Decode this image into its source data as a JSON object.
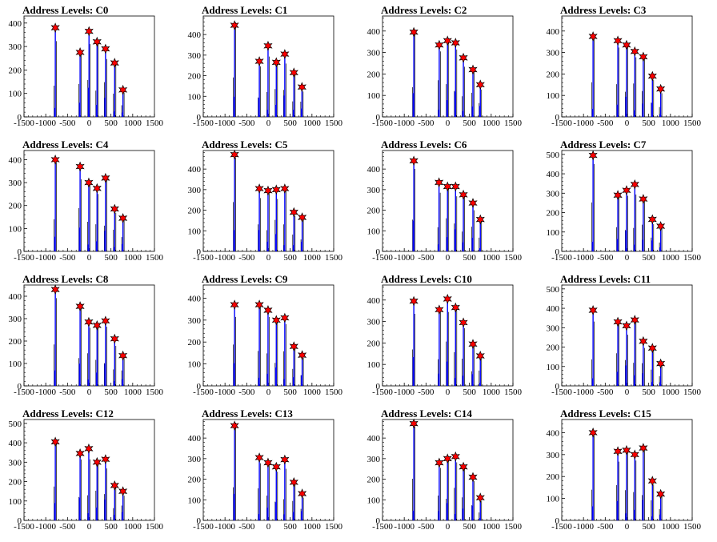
{
  "colors": {
    "hist_line": "#0000ff",
    "raw_line": "#000000",
    "marker_fill": "#ff0000",
    "marker_stroke": "#000000"
  },
  "chart_data": [
    {
      "type": "bar",
      "title": "Address Levels: C0",
      "xlim": [
        -1500,
        1500
      ],
      "ylim": [
        0,
        430
      ],
      "x_ticks": [
        -1500,
        -1000,
        -500,
        0,
        500,
        1000,
        1500
      ],
      "x_tick_labels": [
        "-1500",
        "-1000",
        "-500",
        "0",
        "500",
        "1000",
        "1500"
      ],
      "y_ticks": [
        0,
        100,
        200,
        300,
        400
      ],
      "peaks": [
        {
          "x": -780,
          "y": 380
        },
        {
          "x": -210,
          "y": 275
        },
        {
          "x": -5,
          "y": 365
        },
        {
          "x": 180,
          "y": 320
        },
        {
          "x": 375,
          "y": 290
        },
        {
          "x": 585,
          "y": 230
        },
        {
          "x": 775,
          "y": 115
        }
      ]
    },
    {
      "type": "bar",
      "title": "Address Levels: C1",
      "xlim": [
        -1500,
        1500
      ],
      "ylim": [
        0,
        490
      ],
      "x_ticks": [
        -1500,
        -1000,
        -500,
        0,
        500,
        1000,
        1500
      ],
      "x_tick_labels": [
        "-1500",
        "-1000",
        "-500",
        "0",
        "500",
        "1000",
        "1500"
      ],
      "y_ticks": [
        0,
        100,
        200,
        300,
        400
      ],
      "peaks": [
        {
          "x": -780,
          "y": 445
        },
        {
          "x": -210,
          "y": 270
        },
        {
          "x": -10,
          "y": 345
        },
        {
          "x": 180,
          "y": 265
        },
        {
          "x": 375,
          "y": 305
        },
        {
          "x": 585,
          "y": 215
        },
        {
          "x": 770,
          "y": 145
        }
      ]
    },
    {
      "type": "bar",
      "title": "Address Levels: C2",
      "xlim": [
        -1500,
        1500
      ],
      "ylim": [
        0,
        470
      ],
      "x_ticks": [
        -1500,
        -1000,
        -500,
        0,
        500,
        1000,
        1500
      ],
      "x_tick_labels": [
        "-1500",
        "-1000",
        "-500",
        "0",
        "500",
        "1000",
        "1500"
      ],
      "y_ticks": [
        0,
        100,
        200,
        300,
        400
      ],
      "peaks": [
        {
          "x": -780,
          "y": 395
        },
        {
          "x": -195,
          "y": 335
        },
        {
          "x": -5,
          "y": 355
        },
        {
          "x": 180,
          "y": 345
        },
        {
          "x": 360,
          "y": 275
        },
        {
          "x": 580,
          "y": 220
        },
        {
          "x": 750,
          "y": 150
        }
      ]
    },
    {
      "type": "bar",
      "title": "Address Levels: C3",
      "xlim": [
        -1500,
        1500
      ],
      "ylim": [
        0,
        470
      ],
      "x_ticks": [
        -1500,
        -1000,
        -500,
        0,
        500,
        1000,
        1500
      ],
      "x_tick_labels": [
        "-1500",
        "-1000",
        "-500",
        "0",
        "500",
        "1000",
        "1500"
      ],
      "y_ticks": [
        0,
        100,
        200,
        300,
        400
      ],
      "peaks": [
        {
          "x": -780,
          "y": 375
        },
        {
          "x": -210,
          "y": 355
        },
        {
          "x": -10,
          "y": 335
        },
        {
          "x": 180,
          "y": 305
        },
        {
          "x": 375,
          "y": 280
        },
        {
          "x": 585,
          "y": 190
        },
        {
          "x": 775,
          "y": 130
        }
      ]
    },
    {
      "type": "bar",
      "title": "Address Levels: C4",
      "xlim": [
        -1500,
        1500
      ],
      "ylim": [
        0,
        440
      ],
      "x_ticks": [
        -1500,
        -1000,
        -500,
        0,
        500,
        1000,
        1500
      ],
      "x_tick_labels": [
        "-1500",
        "-1000",
        "-500",
        "0",
        "500",
        "1000",
        "1500"
      ],
      "y_ticks": [
        0,
        100,
        200,
        300,
        400
      ],
      "peaks": [
        {
          "x": -780,
          "y": 400
        },
        {
          "x": -210,
          "y": 370
        },
        {
          "x": -10,
          "y": 300
        },
        {
          "x": 180,
          "y": 275
        },
        {
          "x": 375,
          "y": 320
        },
        {
          "x": 585,
          "y": 185
        },
        {
          "x": 775,
          "y": 145
        }
      ]
    },
    {
      "type": "bar",
      "title": "Address Levels: C5",
      "xlim": [
        -1500,
        1500
      ],
      "ylim": [
        0,
        490
      ],
      "x_ticks": [
        -1500,
        -1000,
        -500,
        0,
        500,
        1000,
        1500
      ],
      "x_tick_labels": [
        "-1500",
        "-1000",
        "-500",
        "0",
        "500",
        "1000",
        "1500"
      ],
      "y_ticks": [
        0,
        100,
        200,
        300,
        400
      ],
      "peaks": [
        {
          "x": -780,
          "y": 470
        },
        {
          "x": -210,
          "y": 305
        },
        {
          "x": -10,
          "y": 295
        },
        {
          "x": 180,
          "y": 300
        },
        {
          "x": 375,
          "y": 305
        },
        {
          "x": 585,
          "y": 190
        },
        {
          "x": 775,
          "y": 165
        }
      ]
    },
    {
      "type": "bar",
      "title": "Address Levels: C6",
      "xlim": [
        -1500,
        1500
      ],
      "ylim": [
        0,
        490
      ],
      "x_ticks": [
        -1500,
        -1000,
        -500,
        0,
        500,
        1000,
        1500
      ],
      "x_tick_labels": [
        "-1500",
        "-1000",
        "-500",
        "0",
        "500",
        "1000",
        "1500"
      ],
      "y_ticks": [
        0,
        100,
        200,
        300,
        400
      ],
      "peaks": [
        {
          "x": -780,
          "y": 440
        },
        {
          "x": -200,
          "y": 335
        },
        {
          "x": -5,
          "y": 315
        },
        {
          "x": 180,
          "y": 315
        },
        {
          "x": 360,
          "y": 275
        },
        {
          "x": 580,
          "y": 235
        },
        {
          "x": 750,
          "y": 155
        }
      ]
    },
    {
      "type": "bar",
      "title": "Address Levels: C7",
      "xlim": [
        -1500,
        1500
      ],
      "ylim": [
        0,
        520
      ],
      "x_ticks": [
        -1500,
        -1000,
        -500,
        0,
        500,
        1000,
        1500
      ],
      "x_tick_labels": [
        "-1500",
        "-1000",
        "-500",
        "0",
        "500",
        "1000",
        "1500"
      ],
      "y_ticks": [
        0,
        100,
        200,
        300,
        400,
        500
      ],
      "peaks": [
        {
          "x": -780,
          "y": 495
        },
        {
          "x": -210,
          "y": 290
        },
        {
          "x": -10,
          "y": 315
        },
        {
          "x": 180,
          "y": 345
        },
        {
          "x": 375,
          "y": 270
        },
        {
          "x": 585,
          "y": 165
        },
        {
          "x": 775,
          "y": 130
        }
      ]
    },
    {
      "type": "bar",
      "title": "Address Levels: C8",
      "xlim": [
        -1500,
        1500
      ],
      "ylim": [
        0,
        450
      ],
      "x_ticks": [
        -1500,
        -1000,
        -500,
        0,
        500,
        1000,
        1500
      ],
      "x_tick_labels": [
        "-1500",
        "-1000",
        "-500",
        "0",
        "500",
        "1000",
        "1500"
      ],
      "y_ticks": [
        0,
        100,
        200,
        300,
        400
      ],
      "peaks": [
        {
          "x": -780,
          "y": 430
        },
        {
          "x": -210,
          "y": 355
        },
        {
          "x": -10,
          "y": 285
        },
        {
          "x": 180,
          "y": 270
        },
        {
          "x": 375,
          "y": 290
        },
        {
          "x": 585,
          "y": 210
        },
        {
          "x": 775,
          "y": 135
        }
      ]
    },
    {
      "type": "bar",
      "title": "Address Levels: C9",
      "xlim": [
        -1500,
        1500
      ],
      "ylim": [
        0,
        460
      ],
      "x_ticks": [
        -1500,
        -1000,
        -500,
        0,
        500,
        1000,
        1500
      ],
      "x_tick_labels": [
        "-1500",
        "-1000",
        "-500",
        "0",
        "500",
        "1000",
        "1500"
      ],
      "y_ticks": [
        0,
        100,
        200,
        300,
        400
      ],
      "peaks": [
        {
          "x": -780,
          "y": 370
        },
        {
          "x": -210,
          "y": 370
        },
        {
          "x": -10,
          "y": 345
        },
        {
          "x": 180,
          "y": 300
        },
        {
          "x": 375,
          "y": 310
        },
        {
          "x": 585,
          "y": 180
        },
        {
          "x": 775,
          "y": 140
        }
      ]
    },
    {
      "type": "bar",
      "title": "Address Levels: C10",
      "xlim": [
        -1500,
        1500
      ],
      "ylim": [
        0,
        470
      ],
      "x_ticks": [
        -1500,
        -1000,
        -500,
        0,
        500,
        1000,
        1500
      ],
      "x_tick_labels": [
        "-1500",
        "-1000",
        "-500",
        "0",
        "500",
        "1000",
        "1500"
      ],
      "y_ticks": [
        0,
        100,
        200,
        300,
        400
      ],
      "peaks": [
        {
          "x": -780,
          "y": 395
        },
        {
          "x": -195,
          "y": 355
        },
        {
          "x": -5,
          "y": 405
        },
        {
          "x": 180,
          "y": 365
        },
        {
          "x": 360,
          "y": 295
        },
        {
          "x": 580,
          "y": 195
        },
        {
          "x": 750,
          "y": 140
        }
      ]
    },
    {
      "type": "bar",
      "title": "Address Levels: C11",
      "xlim": [
        -1500,
        1500
      ],
      "ylim": [
        0,
        520
      ],
      "x_ticks": [
        -1500,
        -1000,
        -500,
        0,
        500,
        1000,
        1500
      ],
      "x_tick_labels": [
        "-1500",
        "-1000",
        "-500",
        "0",
        "500",
        "1000",
        "1500"
      ],
      "y_ticks": [
        0,
        100,
        200,
        300,
        400,
        500
      ],
      "peaks": [
        {
          "x": -780,
          "y": 390
        },
        {
          "x": -210,
          "y": 330
        },
        {
          "x": -10,
          "y": 310
        },
        {
          "x": 180,
          "y": 340
        },
        {
          "x": 375,
          "y": 230
        },
        {
          "x": 585,
          "y": 195
        },
        {
          "x": 775,
          "y": 115
        }
      ]
    },
    {
      "type": "bar",
      "title": "Address Levels: C12",
      "xlim": [
        -1500,
        1500
      ],
      "ylim": [
        0,
        520
      ],
      "x_ticks": [
        -1500,
        -1000,
        -500,
        0,
        500,
        1000,
        1500
      ],
      "x_tick_labels": [
        "-1500",
        "-1000",
        "-500",
        "0",
        "500",
        "1000",
        "1500"
      ],
      "y_ticks": [
        0,
        100,
        200,
        300,
        400,
        500
      ],
      "peaks": [
        {
          "x": -780,
          "y": 405
        },
        {
          "x": -210,
          "y": 345
        },
        {
          "x": -10,
          "y": 370
        },
        {
          "x": 180,
          "y": 300
        },
        {
          "x": 375,
          "y": 315
        },
        {
          "x": 585,
          "y": 180
        },
        {
          "x": 775,
          "y": 150
        }
      ]
    },
    {
      "type": "bar",
      "title": "Address Levels: C13",
      "xlim": [
        -1500,
        1500
      ],
      "ylim": [
        0,
        490
      ],
      "x_ticks": [
        -1500,
        -1000,
        -500,
        0,
        500,
        1000,
        1500
      ],
      "x_tick_labels": [
        "-1500",
        "-1000",
        "-500",
        "0",
        "500",
        "1000",
        "1500"
      ],
      "y_ticks": [
        0,
        100,
        200,
        300,
        400
      ],
      "peaks": [
        {
          "x": -780,
          "y": 460
        },
        {
          "x": -210,
          "y": 305
        },
        {
          "x": -10,
          "y": 280
        },
        {
          "x": 180,
          "y": 260
        },
        {
          "x": 375,
          "y": 295
        },
        {
          "x": 585,
          "y": 185
        },
        {
          "x": 775,
          "y": 130
        }
      ]
    },
    {
      "type": "bar",
      "title": "Address Levels: C14",
      "xlim": [
        -1500,
        1500
      ],
      "ylim": [
        0,
        490
      ],
      "x_ticks": [
        -1500,
        -1000,
        -500,
        0,
        500,
        1000,
        1500
      ],
      "x_tick_labels": [
        "-1500",
        "-1000",
        "-500",
        "0",
        "500",
        "1000",
        "1500"
      ],
      "y_ticks": [
        0,
        100,
        200,
        300,
        400
      ],
      "peaks": [
        {
          "x": -780,
          "y": 470
        },
        {
          "x": -195,
          "y": 280
        },
        {
          "x": -5,
          "y": 300
        },
        {
          "x": 180,
          "y": 310
        },
        {
          "x": 360,
          "y": 260
        },
        {
          "x": 580,
          "y": 210
        },
        {
          "x": 750,
          "y": 110
        }
      ]
    },
    {
      "type": "bar",
      "title": "Address Levels: C15",
      "xlim": [
        -1500,
        1500
      ],
      "ylim": [
        0,
        460
      ],
      "x_ticks": [
        -1500,
        -1000,
        -500,
        0,
        500,
        1000,
        1500
      ],
      "x_tick_labels": [
        "-1500",
        "-1000",
        "-500",
        "0",
        "500",
        "1000",
        "1500"
      ],
      "y_ticks": [
        0,
        100,
        200,
        300,
        400
      ],
      "peaks": [
        {
          "x": -780,
          "y": 400
        },
        {
          "x": -210,
          "y": 315
        },
        {
          "x": -10,
          "y": 320
        },
        {
          "x": 180,
          "y": 300
        },
        {
          "x": 375,
          "y": 330
        },
        {
          "x": 585,
          "y": 180
        },
        {
          "x": 775,
          "y": 120
        }
      ]
    }
  ]
}
